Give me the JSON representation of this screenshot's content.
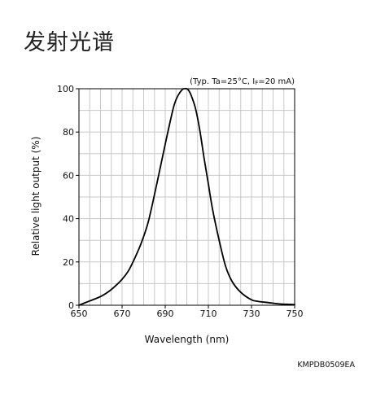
{
  "page": {
    "title": "发射光谱"
  },
  "chart_data": {
    "type": "line",
    "title": "",
    "conditions": {
      "prefix": "(Typ. Ta=25°C, I",
      "subscript": "F",
      "suffix": "=20 mA)"
    },
    "xlabel": "Wavelength (nm)",
    "ylabel": "Relative light output (%)",
    "xlim": [
      650,
      750
    ],
    "ylim": [
      0,
      100
    ],
    "xticks": [
      650,
      670,
      690,
      710,
      730,
      750
    ],
    "yticks": [
      0,
      20,
      40,
      60,
      80,
      100
    ],
    "x_minor_step": 5,
    "y_minor_step": 10,
    "grid": true,
    "series": [
      {
        "color": "#000000",
        "x": [
          650,
          655,
          660,
          664,
          667,
          670,
          673,
          676,
          679,
          682,
          685,
          688,
          691,
          694,
          696,
          698,
          699,
          700,
          701,
          702,
          704,
          706,
          708,
          710,
          712,
          715,
          718,
          721,
          725,
          730,
          733,
          738,
          743,
          748,
          750
        ],
        "y": [
          0,
          2,
          4,
          6.5,
          9,
          12,
          16,
          22,
          29,
          38,
          51,
          65,
          79,
          92,
          97,
          99.7,
          100,
          100,
          99,
          97,
          91,
          81,
          68,
          56,
          44,
          30,
          18,
          11,
          6,
          2.5,
          1.8,
          1.2,
          0.6,
          0.4,
          0.3
        ]
      }
    ]
  },
  "footer": {
    "code": "KMPDB0509EA"
  }
}
